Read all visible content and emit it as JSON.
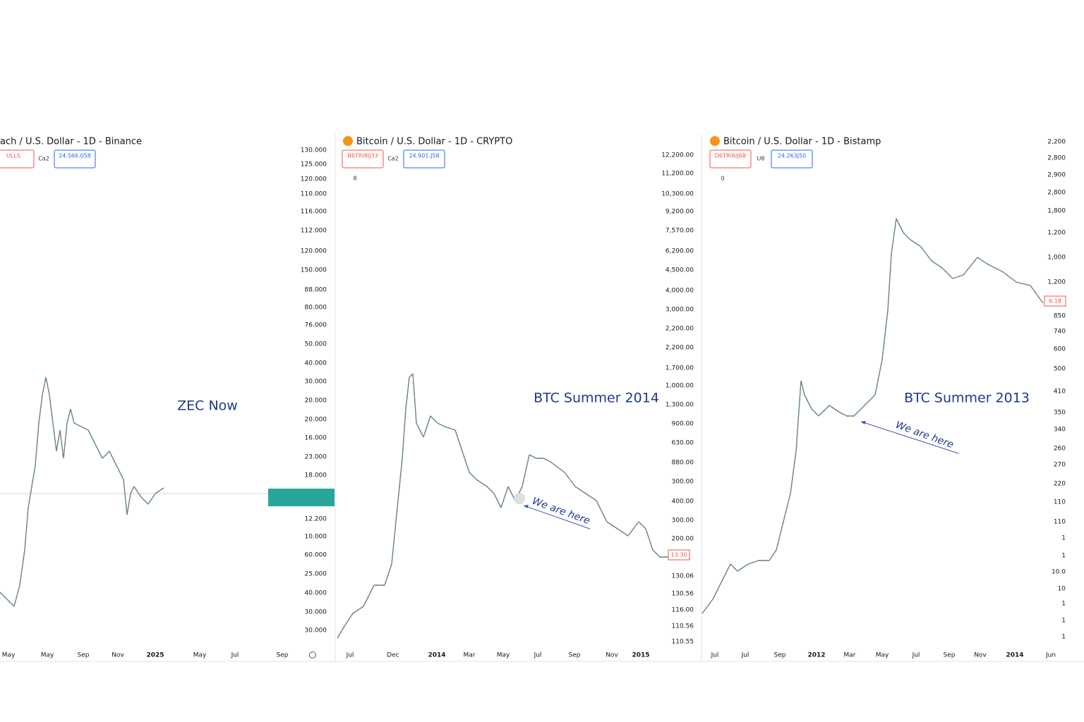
{
  "panels": [
    {
      "header": "ach / U.S. Dollar - 1D - Binance",
      "sell": "ULLS",
      "spread": "Ca2",
      "buy": "24.566.058",
      "price_labels": [
        "130.000",
        "125.000",
        "120.000",
        "110.000",
        "116.000",
        "112.000",
        "120.000",
        "150.000",
        "88.000",
        "80.000",
        "76.000",
        "50.000",
        "40.000",
        "30.000",
        "20.000",
        "20.000",
        "16.000",
        "23.000",
        "18.000",
        "12.200",
        "10.000",
        "60.000",
        "25.000",
        "40.000",
        "30.000",
        "30.000"
      ],
      "date_labels": [
        "May",
        "May",
        "Sep",
        "Nov",
        "2025",
        "May",
        "Jul",
        "Sep"
      ],
      "annotation": "ZEC Now"
    },
    {
      "header": "Bitcoin / U.S. Dollar - 1D - CRYPTO",
      "sell": "B6TRI8IJ33",
      "spread": "Ca2",
      "buy": "24.901.J58",
      "indicator": "8",
      "price_labels": [
        "12,200.00",
        "11,200.00",
        "10,300.00",
        "9,200.00",
        "7,570.00",
        "6,200.00",
        "4,500.00",
        "4,000.00",
        "3,000.00",
        "2,200.00",
        "2,200.00",
        "1,700.00",
        "1,000.00",
        "1,300.00",
        "900.00",
        "630.00",
        "880.00",
        "300.00",
        "400.00",
        "300.00",
        "200.00",
        "130.06",
        "130.56",
        "116.00",
        "110.56",
        "110.55"
      ],
      "date_labels": [
        "Jul",
        "Dec",
        "2014",
        "Mar",
        "May",
        "Jul",
        "Sep",
        "Nov",
        "2015"
      ],
      "annotation": "BTC Summer 2014",
      "note": "We are here",
      "price_tag": "13.30"
    },
    {
      "header": "Bitcoin / U.S. Dollar - 1D - Bistamp",
      "sell": "D6TRI6IJ6B",
      "spread": "U8",
      "buy": "24.263J50",
      "indicator": "0",
      "price_labels": [
        "2,200",
        "2,800",
        "2,900",
        "2,800",
        "1,800",
        "1,200",
        "1,000",
        "1,200",
        "850",
        "740",
        "600",
        "500",
        "410",
        "350",
        "340",
        "260",
        "270",
        "220",
        "110",
        "110",
        "1",
        "1",
        "10.0",
        "10",
        "1",
        "1",
        "1"
      ],
      "date_labels": [
        "Jul",
        "Jul",
        "Sep",
        "2012",
        "Mar",
        "May",
        "Jul",
        "Sep",
        "Nov",
        "2014",
        "Jun"
      ],
      "annotation": "BTC Summer 2013",
      "note": "We are here",
      "price_tag": "6.18"
    }
  ]
}
